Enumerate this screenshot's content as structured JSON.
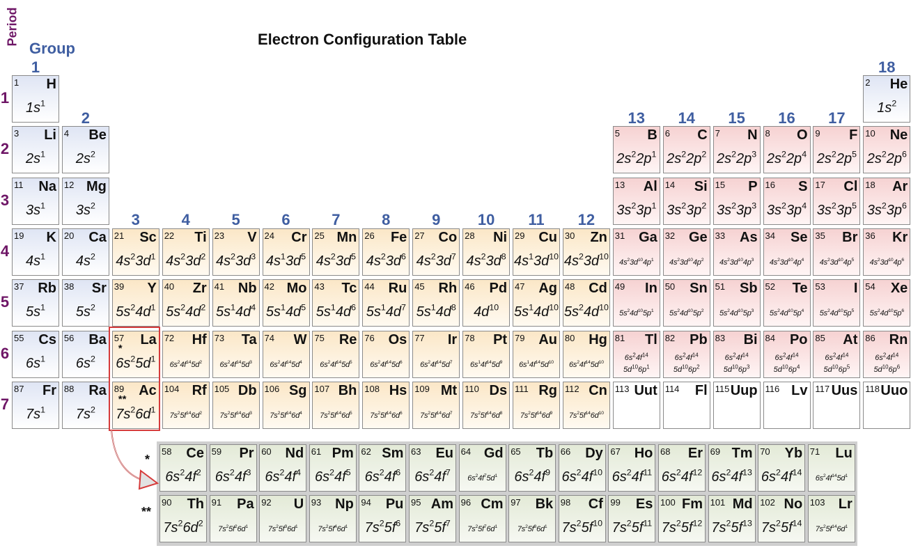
{
  "title": "Electron Configuration Table",
  "axis": {
    "period_label": "Period",
    "group_label": "Group"
  },
  "groups": [
    "1",
    "2",
    "3",
    "4",
    "5",
    "6",
    "7",
    "8",
    "9",
    "10",
    "11",
    "12",
    "13",
    "14",
    "15",
    "16",
    "17",
    "18"
  ],
  "periods": [
    "1",
    "2",
    "3",
    "4",
    "5",
    "6",
    "7"
  ],
  "markers": {
    "lanthanide": "*",
    "actinide": "**"
  },
  "colors": {
    "s_block": "#dfe5f4",
    "p_block": "#f6d2d2",
    "d_block": "#fbe7c7",
    "f_block": "#e3ead7",
    "group_text": "#3f5ea1",
    "period_text": "#6e1666",
    "highlight": "#d63b3b"
  },
  "elements": [
    {
      "n": "1",
      "sym": "H",
      "row": 1,
      "col": 1,
      "b": "s",
      "cfg": "1s^1"
    },
    {
      "n": "2",
      "sym": "He",
      "row": 1,
      "col": 18,
      "b": "s",
      "cfg": "1s^2"
    },
    {
      "n": "3",
      "sym": "Li",
      "row": 2,
      "col": 1,
      "b": "s",
      "cfg": "2s^1"
    },
    {
      "n": "4",
      "sym": "Be",
      "row": 2,
      "col": 2,
      "b": "s",
      "cfg": "2s^2"
    },
    {
      "n": "5",
      "sym": "B",
      "row": 2,
      "col": 13,
      "b": "p",
      "cfg": "2s^2 2p^1"
    },
    {
      "n": "6",
      "sym": "C",
      "row": 2,
      "col": 14,
      "b": "p",
      "cfg": "2s^2 2p^2"
    },
    {
      "n": "7",
      "sym": "N",
      "row": 2,
      "col": 15,
      "b": "p",
      "cfg": "2s^2 2p^3"
    },
    {
      "n": "8",
      "sym": "O",
      "row": 2,
      "col": 16,
      "b": "p",
      "cfg": "2s^2 2p^4"
    },
    {
      "n": "9",
      "sym": "F",
      "row": 2,
      "col": 17,
      "b": "p",
      "cfg": "2s^2 2p^5"
    },
    {
      "n": "10",
      "sym": "Ne",
      "row": 2,
      "col": 18,
      "b": "p",
      "cfg": "2s^2 2p^6"
    },
    {
      "n": "11",
      "sym": "Na",
      "row": 3,
      "col": 1,
      "b": "s",
      "cfg": "3s^1"
    },
    {
      "n": "12",
      "sym": "Mg",
      "row": 3,
      "col": 2,
      "b": "s",
      "cfg": "3s^2"
    },
    {
      "n": "13",
      "sym": "Al",
      "row": 3,
      "col": 13,
      "b": "p",
      "cfg": "3s^2 3p^1"
    },
    {
      "n": "14",
      "sym": "Si",
      "row": 3,
      "col": 14,
      "b": "p",
      "cfg": "3s^2 3p^2"
    },
    {
      "n": "15",
      "sym": "P",
      "row": 3,
      "col": 15,
      "b": "p",
      "cfg": "3s^2 3p^3"
    },
    {
      "n": "16",
      "sym": "S",
      "row": 3,
      "col": 16,
      "b": "p",
      "cfg": "3s^2 3p^4"
    },
    {
      "n": "17",
      "sym": "Cl",
      "row": 3,
      "col": 17,
      "b": "p",
      "cfg": "3s^2 3p^5"
    },
    {
      "n": "18",
      "sym": "Ar",
      "row": 3,
      "col": 18,
      "b": "p",
      "cfg": "3s^2 3p^6"
    },
    {
      "n": "19",
      "sym": "K",
      "row": 4,
      "col": 1,
      "b": "s",
      "cfg": "4s^1"
    },
    {
      "n": "20",
      "sym": "Ca",
      "row": 4,
      "col": 2,
      "b": "s",
      "cfg": "4s^2"
    },
    {
      "n": "21",
      "sym": "Sc",
      "row": 4,
      "col": 3,
      "b": "d",
      "cfg": "4s^2 3d^1"
    },
    {
      "n": "22",
      "sym": "Ti",
      "row": 4,
      "col": 4,
      "b": "d",
      "cfg": "4s^2 3d^2"
    },
    {
      "n": "23",
      "sym": "V",
      "row": 4,
      "col": 5,
      "b": "d",
      "cfg": "4s^2 3d^3"
    },
    {
      "n": "24",
      "sym": "Cr",
      "row": 4,
      "col": 6,
      "b": "d",
      "cfg": "4s^1 3d^5"
    },
    {
      "n": "25",
      "sym": "Mn",
      "row": 4,
      "col": 7,
      "b": "d",
      "cfg": "4s^2 3d^5"
    },
    {
      "n": "26",
      "sym": "Fe",
      "row": 4,
      "col": 8,
      "b": "d",
      "cfg": "4s^2 3d^6"
    },
    {
      "n": "27",
      "sym": "Co",
      "row": 4,
      "col": 9,
      "b": "d",
      "cfg": "4s^2 3d^7"
    },
    {
      "n": "28",
      "sym": "Ni",
      "row": 4,
      "col": 10,
      "b": "d",
      "cfg": "4s^2 3d^8"
    },
    {
      "n": "29",
      "sym": "Cu",
      "row": 4,
      "col": 11,
      "b": "d",
      "cfg": "4s^1 3d^10"
    },
    {
      "n": "30",
      "sym": "Zn",
      "row": 4,
      "col": 12,
      "b": "d",
      "cfg": "4s^2 3d^10"
    },
    {
      "n": "31",
      "sym": "Ga",
      "row": 4,
      "col": 13,
      "b": "p",
      "cfg": "4s^2 3d^10 4p^1",
      "small": true
    },
    {
      "n": "32",
      "sym": "Ge",
      "row": 4,
      "col": 14,
      "b": "p",
      "cfg": "4s^2 3d^10 4p^2",
      "small": true
    },
    {
      "n": "33",
      "sym": "As",
      "row": 4,
      "col": 15,
      "b": "p",
      "cfg": "4s^2 3d^10 4p^3",
      "small": true
    },
    {
      "n": "34",
      "sym": "Se",
      "row": 4,
      "col": 16,
      "b": "p",
      "cfg": "4s^2 3d^10 4p^4",
      "small": true
    },
    {
      "n": "35",
      "sym": "Br",
      "row": 4,
      "col": 17,
      "b": "p",
      "cfg": "4s^2 3d^10 4p^5",
      "small": true
    },
    {
      "n": "36",
      "sym": "Kr",
      "row": 4,
      "col": 18,
      "b": "p",
      "cfg": "4s^2 3d^10 4p^6",
      "small": true
    },
    {
      "n": "37",
      "sym": "Rb",
      "row": 5,
      "col": 1,
      "b": "s",
      "cfg": "5s^1"
    },
    {
      "n": "38",
      "sym": "Sr",
      "row": 5,
      "col": 2,
      "b": "s",
      "cfg": "5s^2"
    },
    {
      "n": "39",
      "sym": "Y",
      "row": 5,
      "col": 3,
      "b": "d",
      "cfg": "5s^2 4d^1"
    },
    {
      "n": "40",
      "sym": "Zr",
      "row": 5,
      "col": 4,
      "b": "d",
      "cfg": "5s^2 4d^2"
    },
    {
      "n": "41",
      "sym": "Nb",
      "row": 5,
      "col": 5,
      "b": "d",
      "cfg": "5s^1 4d^4"
    },
    {
      "n": "42",
      "sym": "Mo",
      "row": 5,
      "col": 6,
      "b": "d",
      "cfg": "5s^1 4d^5"
    },
    {
      "n": "43",
      "sym": "Tc",
      "row": 5,
      "col": 7,
      "b": "d",
      "cfg": "5s^1 4d^6"
    },
    {
      "n": "44",
      "sym": "Ru",
      "row": 5,
      "col": 8,
      "b": "d",
      "cfg": "5s^1 4d^7"
    },
    {
      "n": "45",
      "sym": "Rh",
      "row": 5,
      "col": 9,
      "b": "d",
      "cfg": "5s^1 4d^8"
    },
    {
      "n": "46",
      "sym": "Pd",
      "row": 5,
      "col": 10,
      "b": "d",
      "cfg": "4d^10"
    },
    {
      "n": "47",
      "sym": "Ag",
      "row": 5,
      "col": 11,
      "b": "d",
      "cfg": "5s^1 4d^10"
    },
    {
      "n": "48",
      "sym": "Cd",
      "row": 5,
      "col": 12,
      "b": "d",
      "cfg": "5s^2 4d^10"
    },
    {
      "n": "49",
      "sym": "In",
      "row": 5,
      "col": 13,
      "b": "p",
      "cfg": "5s^2 4d^10 5p^1",
      "small": true
    },
    {
      "n": "50",
      "sym": "Sn",
      "row": 5,
      "col": 14,
      "b": "p",
      "cfg": "5s^2 4d^10 5p^2",
      "small": true
    },
    {
      "n": "51",
      "sym": "Sb",
      "row": 5,
      "col": 15,
      "b": "p",
      "cfg": "5s^2 4d^10 5p^3",
      "small": true
    },
    {
      "n": "52",
      "sym": "Te",
      "row": 5,
      "col": 16,
      "b": "p",
      "cfg": "5s^2 4d^10 5p^4",
      "small": true
    },
    {
      "n": "53",
      "sym": "I",
      "row": 5,
      "col": 17,
      "b": "p",
      "cfg": "5s^2 4d^10 5p^5",
      "small": true
    },
    {
      "n": "54",
      "sym": "Xe",
      "row": 5,
      "col": 18,
      "b": "p",
      "cfg": "5s^2 4d^10 5p^6",
      "small": true
    },
    {
      "n": "55",
      "sym": "Cs",
      "row": 6,
      "col": 1,
      "b": "s",
      "cfg": "6s^1"
    },
    {
      "n": "56",
      "sym": "Ba",
      "row": 6,
      "col": 2,
      "b": "s",
      "cfg": "6s^2"
    },
    {
      "n": "57",
      "sym": "La",
      "row": 6,
      "col": 3,
      "b": "d",
      "cfg": "6s^2 5d^1",
      "mark": "*"
    },
    {
      "n": "72",
      "sym": "Hf",
      "row": 6,
      "col": 4,
      "b": "d",
      "cfg": "6s^2 4f^14 5d^2",
      "small": true
    },
    {
      "n": "73",
      "sym": "Ta",
      "row": 6,
      "col": 5,
      "b": "d",
      "cfg": "6s^2 4f^14 5d^3",
      "small": true
    },
    {
      "n": "74",
      "sym": "W",
      "row": 6,
      "col": 6,
      "b": "d",
      "cfg": "6s^2 4f^14 5d^4",
      "small": true
    },
    {
      "n": "75",
      "sym": "Re",
      "row": 6,
      "col": 7,
      "b": "d",
      "cfg": "6s^2 4f^14 5d^5",
      "small": true
    },
    {
      "n": "76",
      "sym": "Os",
      "row": 6,
      "col": 8,
      "b": "d",
      "cfg": "6s^2 4f^14 5d^6",
      "small": true
    },
    {
      "n": "77",
      "sym": "Ir",
      "row": 6,
      "col": 9,
      "b": "d",
      "cfg": "6s^2 4f^14 5d^7",
      "small": true
    },
    {
      "n": "78",
      "sym": "Pt",
      "row": 6,
      "col": 10,
      "b": "d",
      "cfg": "6s^1 4f^14 5d^9",
      "small": true
    },
    {
      "n": "79",
      "sym": "Au",
      "row": 6,
      "col": 11,
      "b": "d",
      "cfg": "6s^1 4f^14 5d^10",
      "small": true
    },
    {
      "n": "80",
      "sym": "Hg",
      "row": 6,
      "col": 12,
      "b": "d",
      "cfg": "6s^2 4f^14 5d^10",
      "small": true
    },
    {
      "n": "81",
      "sym": "Tl",
      "row": 6,
      "col": 13,
      "b": "p",
      "cfg": "6s^2 4f^14",
      "cfg2": "5d^10 6p^1"
    },
    {
      "n": "82",
      "sym": "Pb",
      "row": 6,
      "col": 14,
      "b": "p",
      "cfg": "6s^2 4f^14",
      "cfg2": "5d^10 6p^2"
    },
    {
      "n": "83",
      "sym": "Bi",
      "row": 6,
      "col": 15,
      "b": "p",
      "cfg": "6s^2 4f^14",
      "cfg2": "5d^10 6p^3"
    },
    {
      "n": "84",
      "sym": "Po",
      "row": 6,
      "col": 16,
      "b": "p",
      "cfg": "6s^2 4f^14",
      "cfg2": "5d^10 6p^4"
    },
    {
      "n": "85",
      "sym": "At",
      "row": 6,
      "col": 17,
      "b": "p",
      "cfg": "6s^2 4f^14",
      "cfg2": "5d^10 6p^5"
    },
    {
      "n": "86",
      "sym": "Rn",
      "row": 6,
      "col": 18,
      "b": "p",
      "cfg": "6s^2 4f^14",
      "cfg2": "5d^10 6p^6"
    },
    {
      "n": "87",
      "sym": "Fr",
      "row": 7,
      "col": 1,
      "b": "s",
      "cfg": "7s^1"
    },
    {
      "n": "88",
      "sym": "Ra",
      "row": 7,
      "col": 2,
      "b": "s",
      "cfg": "7s^2"
    },
    {
      "n": "89",
      "sym": "Ac",
      "row": 7,
      "col": 3,
      "b": "d",
      "cfg": "7s^2 6d^1",
      "mark": "**"
    },
    {
      "n": "104",
      "sym": "Rf",
      "row": 7,
      "col": 4,
      "b": "d",
      "cfg": "7s^2 5f^14 6d^2",
      "small": true
    },
    {
      "n": "105",
      "sym": "Db",
      "row": 7,
      "col": 5,
      "b": "d",
      "cfg": "7s^2 5f^14 6d^3",
      "small": true
    },
    {
      "n": "106",
      "sym": "Sg",
      "row": 7,
      "col": 6,
      "b": "d",
      "cfg": "7s^2 5f^14 6d^4",
      "small": true
    },
    {
      "n": "107",
      "sym": "Bh",
      "row": 7,
      "col": 7,
      "b": "d",
      "cfg": "7s^2 5f^14 6d^5",
      "small": true
    },
    {
      "n": "108",
      "sym": "Hs",
      "row": 7,
      "col": 8,
      "b": "d",
      "cfg": "7s^2 5f^14 6d^6",
      "small": true
    },
    {
      "n": "109",
      "sym": "Mt",
      "row": 7,
      "col": 9,
      "b": "d",
      "cfg": "7s^2 5f^14 6d^7",
      "small": true
    },
    {
      "n": "110",
      "sym": "Ds",
      "row": 7,
      "col": 10,
      "b": "d",
      "cfg": "7s^2 5f^14 6d^8",
      "small": true
    },
    {
      "n": "111",
      "sym": "Rg",
      "row": 7,
      "col": 11,
      "b": "d",
      "cfg": "7s^2 5f^14 6d^9",
      "small": true
    },
    {
      "n": "112",
      "sym": "Cn",
      "row": 7,
      "col": 12,
      "b": "d",
      "cfg": "7s^2 5f^14 6d^10",
      "small": true
    },
    {
      "n": "113",
      "sym": "Uut",
      "row": 7,
      "col": 13,
      "b": "e",
      "cfg": ""
    },
    {
      "n": "114",
      "sym": "Fl",
      "row": 7,
      "col": 14,
      "b": "e",
      "cfg": ""
    },
    {
      "n": "115",
      "sym": "Uup",
      "row": 7,
      "col": 15,
      "b": "e",
      "cfg": ""
    },
    {
      "n": "116",
      "sym": "Lv",
      "row": 7,
      "col": 16,
      "b": "e",
      "cfg": ""
    },
    {
      "n": "117",
      "sym": "Uus",
      "row": 7,
      "col": 17,
      "b": "e",
      "cfg": ""
    },
    {
      "n": "118",
      "sym": "Uuo",
      "row": 7,
      "col": 18,
      "b": "e",
      "cfg": ""
    }
  ],
  "lanthanides": [
    {
      "n": "58",
      "sym": "Ce",
      "cfg": "6s^2 4f^2"
    },
    {
      "n": "59",
      "sym": "Pr",
      "cfg": "6s^2 4f^3"
    },
    {
      "n": "60",
      "sym": "Nd",
      "cfg": "6s^2 4f^4"
    },
    {
      "n": "61",
      "sym": "Pm",
      "cfg": "6s^2 4f^5"
    },
    {
      "n": "62",
      "sym": "Sm",
      "cfg": "6s^2 4f^6"
    },
    {
      "n": "63",
      "sym": "Eu",
      "cfg": "6s^2 4f^7"
    },
    {
      "n": "64",
      "sym": "Gd",
      "cfg": "6s^2 4f^7 5d^1",
      "small": true
    },
    {
      "n": "65",
      "sym": "Tb",
      "cfg": "6s^2 4f^9"
    },
    {
      "n": "66",
      "sym": "Dy",
      "cfg": "6s^2 4f^10"
    },
    {
      "n": "67",
      "sym": "Ho",
      "cfg": "6s^2 4f^11"
    },
    {
      "n": "68",
      "sym": "Er",
      "cfg": "6s^2 4f^12"
    },
    {
      "n": "69",
      "sym": "Tm",
      "cfg": "6s^2 4f^13"
    },
    {
      "n": "70",
      "sym": "Yb",
      "cfg": "6s^2 4f^14"
    },
    {
      "n": "71",
      "sym": "Lu",
      "cfg": "6s^2 4f^14 5d^1",
      "small": true
    }
  ],
  "actinides": [
    {
      "n": "90",
      "sym": "Th",
      "cfg": "7s^2 6d^2"
    },
    {
      "n": "91",
      "sym": "Pa",
      "cfg": "7s^2 5f^2 6d^1",
      "small": true
    },
    {
      "n": "92",
      "sym": "U",
      "cfg": "7s^2 5f^3 6d^1",
      "small": true
    },
    {
      "n": "93",
      "sym": "Np",
      "cfg": "7s^2 5f^4 6d^1",
      "small": true
    },
    {
      "n": "94",
      "sym": "Pu",
      "cfg": "7s^2 5f^6"
    },
    {
      "n": "95",
      "sym": "Am",
      "cfg": "7s^2 5f^7"
    },
    {
      "n": "96",
      "sym": "Cm",
      "cfg": "7s^2 5f^7 6d^1",
      "small": true
    },
    {
      "n": "97",
      "sym": "Bk",
      "cfg": "7s^2 5f^8 6d^1",
      "small": true
    },
    {
      "n": "98",
      "sym": "Cf",
      "cfg": "7s^2 5f^10"
    },
    {
      "n": "99",
      "sym": "Es",
      "cfg": "7s^2 5f^11"
    },
    {
      "n": "100",
      "sym": "Fm",
      "cfg": "7s^2 5f^12"
    },
    {
      "n": "101",
      "sym": "Md",
      "cfg": "7s^2 5f^13"
    },
    {
      "n": "102",
      "sym": "No",
      "cfg": "7s^2 5f^14"
    },
    {
      "n": "103",
      "sym": "Lr",
      "cfg": "7s^2 5f^14 6d^1",
      "small": true
    }
  ]
}
